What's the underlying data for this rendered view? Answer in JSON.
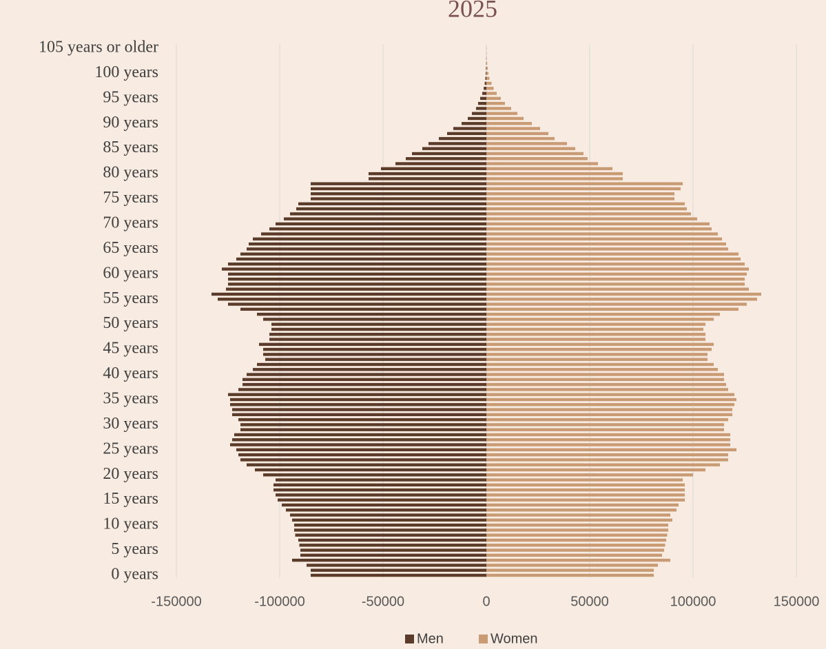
{
  "chart_data": {
    "type": "population-pyramid",
    "title": "2025",
    "categories": [
      "0 years",
      null,
      null,
      null,
      null,
      "5 years",
      null,
      null,
      null,
      null,
      "10 years",
      null,
      null,
      null,
      null,
      "15 years",
      null,
      null,
      null,
      null,
      "20 years",
      null,
      null,
      null,
      null,
      "25 years",
      null,
      null,
      null,
      null,
      "30 years",
      null,
      null,
      null,
      null,
      "35 years",
      null,
      null,
      null,
      null,
      "40 years",
      null,
      null,
      null,
      null,
      "45 years",
      null,
      null,
      null,
      null,
      "50 years",
      null,
      null,
      null,
      null,
      "55 years",
      null,
      null,
      null,
      null,
      "60 years",
      null,
      null,
      null,
      null,
      "65 years",
      null,
      null,
      null,
      null,
      "70 years",
      null,
      null,
      null,
      null,
      "75 years",
      null,
      null,
      null,
      null,
      "80 years",
      null,
      null,
      null,
      null,
      "85 years",
      null,
      null,
      null,
      null,
      "90 years",
      null,
      null,
      null,
      null,
      "95 years",
      null,
      null,
      null,
      null,
      "100 years",
      null,
      null,
      null,
      null,
      "105 years or older"
    ],
    "series": [
      {
        "name": "Men",
        "color": "#5b3b29",
        "values": [
          -85000,
          -85000,
          -87000,
          -94000,
          -90000,
          -90000,
          -90500,
          -91000,
          -92500,
          -93000,
          -93000,
          -94000,
          -95000,
          -97000,
          -99000,
          -101000,
          -102000,
          -103000,
          -103000,
          -102000,
          -108000,
          -112000,
          -116000,
          -119000,
          -120000,
          -121000,
          -124000,
          -123000,
          -122000,
          -119000,
          -119000,
          -120000,
          -123000,
          -123000,
          -124000,
          -124000,
          -125000,
          -120000,
          -118000,
          -118000,
          -116000,
          -113000,
          -111000,
          -107000,
          -108000,
          -108000,
          -110000,
          -105000,
          -105000,
          -104000,
          -104000,
          -108000,
          -111000,
          -119000,
          -125000,
          -130000,
          -133000,
          -126000,
          -125000,
          -125000,
          -125000,
          -128000,
          -125000,
          -121000,
          -119000,
          -116000,
          -115000,
          -113000,
          -109000,
          -105000,
          -102000,
          -98000,
          -95000,
          -92000,
          -91000,
          -85000,
          -85000,
          -85000,
          -85000,
          -57000,
          -57000,
          -51000,
          -44000,
          -39000,
          -36000,
          -31000,
          -28000,
          -23000,
          -19000,
          -16000,
          -12000,
          -9000,
          -7000,
          -5000,
          -4000,
          -3000,
          -2000,
          -1300,
          -800,
          -500,
          -300,
          -200,
          -100,
          -50,
          -30,
          -20
        ]
      },
      {
        "name": "Women",
        "color": "#c99b75",
        "values": [
          81000,
          81000,
          83000,
          89000,
          85000,
          86000,
          86500,
          87000,
          87500,
          88000,
          88000,
          90000,
          89000,
          92000,
          93000,
          96000,
          96000,
          96000,
          96000,
          95000,
          100000,
          106000,
          113000,
          117000,
          117000,
          121000,
          118000,
          118000,
          118000,
          115000,
          115000,
          117000,
          119000,
          119000,
          120000,
          121000,
          120000,
          117000,
          116000,
          115000,
          115000,
          112000,
          110000,
          107000,
          107000,
          109000,
          110000,
          106000,
          106000,
          105000,
          106000,
          110000,
          113000,
          122000,
          126000,
          131000,
          133000,
          127000,
          125000,
          125000,
          126000,
          127000,
          125000,
          123000,
          122000,
          117000,
          116000,
          114000,
          112000,
          109000,
          108000,
          102000,
          99000,
          97000,
          96000,
          91000,
          91000,
          94000,
          95000,
          66000,
          66000,
          61000,
          54000,
          49000,
          47000,
          43000,
          39000,
          33000,
          30000,
          26000,
          22000,
          18000,
          15000,
          12000,
          9000,
          7000,
          5000,
          3500,
          2500,
          1500,
          1000,
          700,
          400,
          200,
          100,
          100
        ]
      }
    ],
    "xlim": [
      -150000,
      150000
    ],
    "xticks": [
      -150000,
      -100000,
      -50000,
      0,
      50000,
      100000,
      150000
    ],
    "grid": true,
    "legend": "bottom"
  }
}
